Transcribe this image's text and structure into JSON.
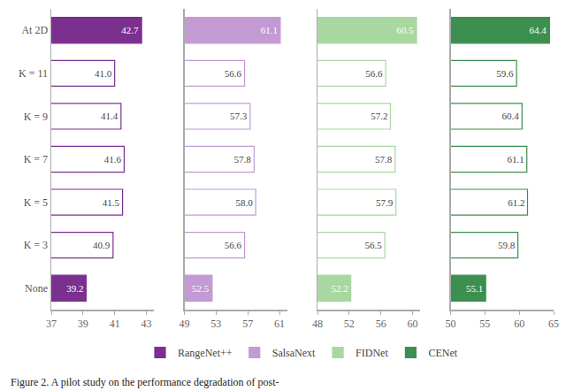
{
  "chart_data": [
    {
      "type": "bar",
      "orientation": "horizontal",
      "legend": "bottom",
      "data_labels": true,
      "grid": false,
      "categories": [
        "At 2D",
        "K = 11",
        "K = 9",
        "K = 7",
        "K = 5",
        "K = 3",
        "None"
      ],
      "series": [
        {
          "name": "RangeNet++",
          "color": "#7b3090",
          "values": [
            42.7,
            41.0,
            41.4,
            41.6,
            41.5,
            40.9,
            39.2
          ],
          "value_labels": [
            "42.7",
            "41.0",
            "41.4",
            "41.6",
            "41.5",
            "40.9",
            "39.2"
          ]
        }
      ],
      "xlim": [
        37,
        43.5
      ],
      "xticks": [
        37,
        39,
        41,
        43
      ]
    },
    {
      "type": "bar",
      "orientation": "horizontal",
      "legend": "bottom",
      "data_labels": true,
      "grid": false,
      "tick_labels": "x",
      "categories": [
        "At 2D",
        "K = 11",
        "K = 9",
        "K = 7",
        "K = 5",
        "K = 3",
        "None"
      ],
      "series": [
        {
          "name": "SalsaNext",
          "color": "#c39ad3",
          "values": [
            61.1,
            56.6,
            57.3,
            57.8,
            58.0,
            56.6,
            52.5
          ],
          "value_labels": [
            "61.1",
            "56.6",
            "57.3",
            "57.8",
            "58.0",
            "56.6",
            "52.5"
          ]
        }
      ],
      "xlim": [
        49,
        62
      ],
      "xticks": [
        49,
        53,
        57,
        61
      ]
    },
    {
      "type": "bar",
      "orientation": "horizontal",
      "legend": "bottom",
      "data_labels": true,
      "grid": false,
      "tick_labels": "x",
      "categories": [
        "At 2D",
        "K = 11",
        "K = 9",
        "K = 7",
        "K = 5",
        "K = 3",
        "None"
      ],
      "series": [
        {
          "name": "FIDNet",
          "color": "#a8d8a0",
          "values": [
            60.5,
            56.6,
            57.2,
            57.8,
            57.9,
            56.5,
            52.2
          ],
          "value_labels": [
            "60.5",
            "56.6",
            "57.2",
            "57.8",
            "57.9",
            "56.5",
            "52.2"
          ]
        }
      ],
      "xlim": [
        48,
        61
      ],
      "xticks": [
        48,
        52,
        56,
        60
      ]
    },
    {
      "type": "bar",
      "orientation": "horizontal",
      "legend": "bottom",
      "data_labels": true,
      "grid": false,
      "tick_labels": "x",
      "categories": [
        "At 2D",
        "K = 11",
        "K = 9",
        "K = 7",
        "K = 5",
        "K = 3",
        "None"
      ],
      "series": [
        {
          "name": "CENet",
          "color": "#3d8f4f",
          "values": [
            64.4,
            59.6,
            60.4,
            61.1,
            61.2,
            59.8,
            55.1
          ],
          "value_labels": [
            "64.4",
            "59.6",
            "60.4",
            "61.1",
            "61.2",
            "59.8",
            "55.1"
          ]
        }
      ],
      "xlim": [
        50,
        65
      ],
      "xticks": [
        50,
        55,
        60,
        65
      ]
    }
  ],
  "caption": "Figure 2. A pilot study on the performance degradation of post-"
}
